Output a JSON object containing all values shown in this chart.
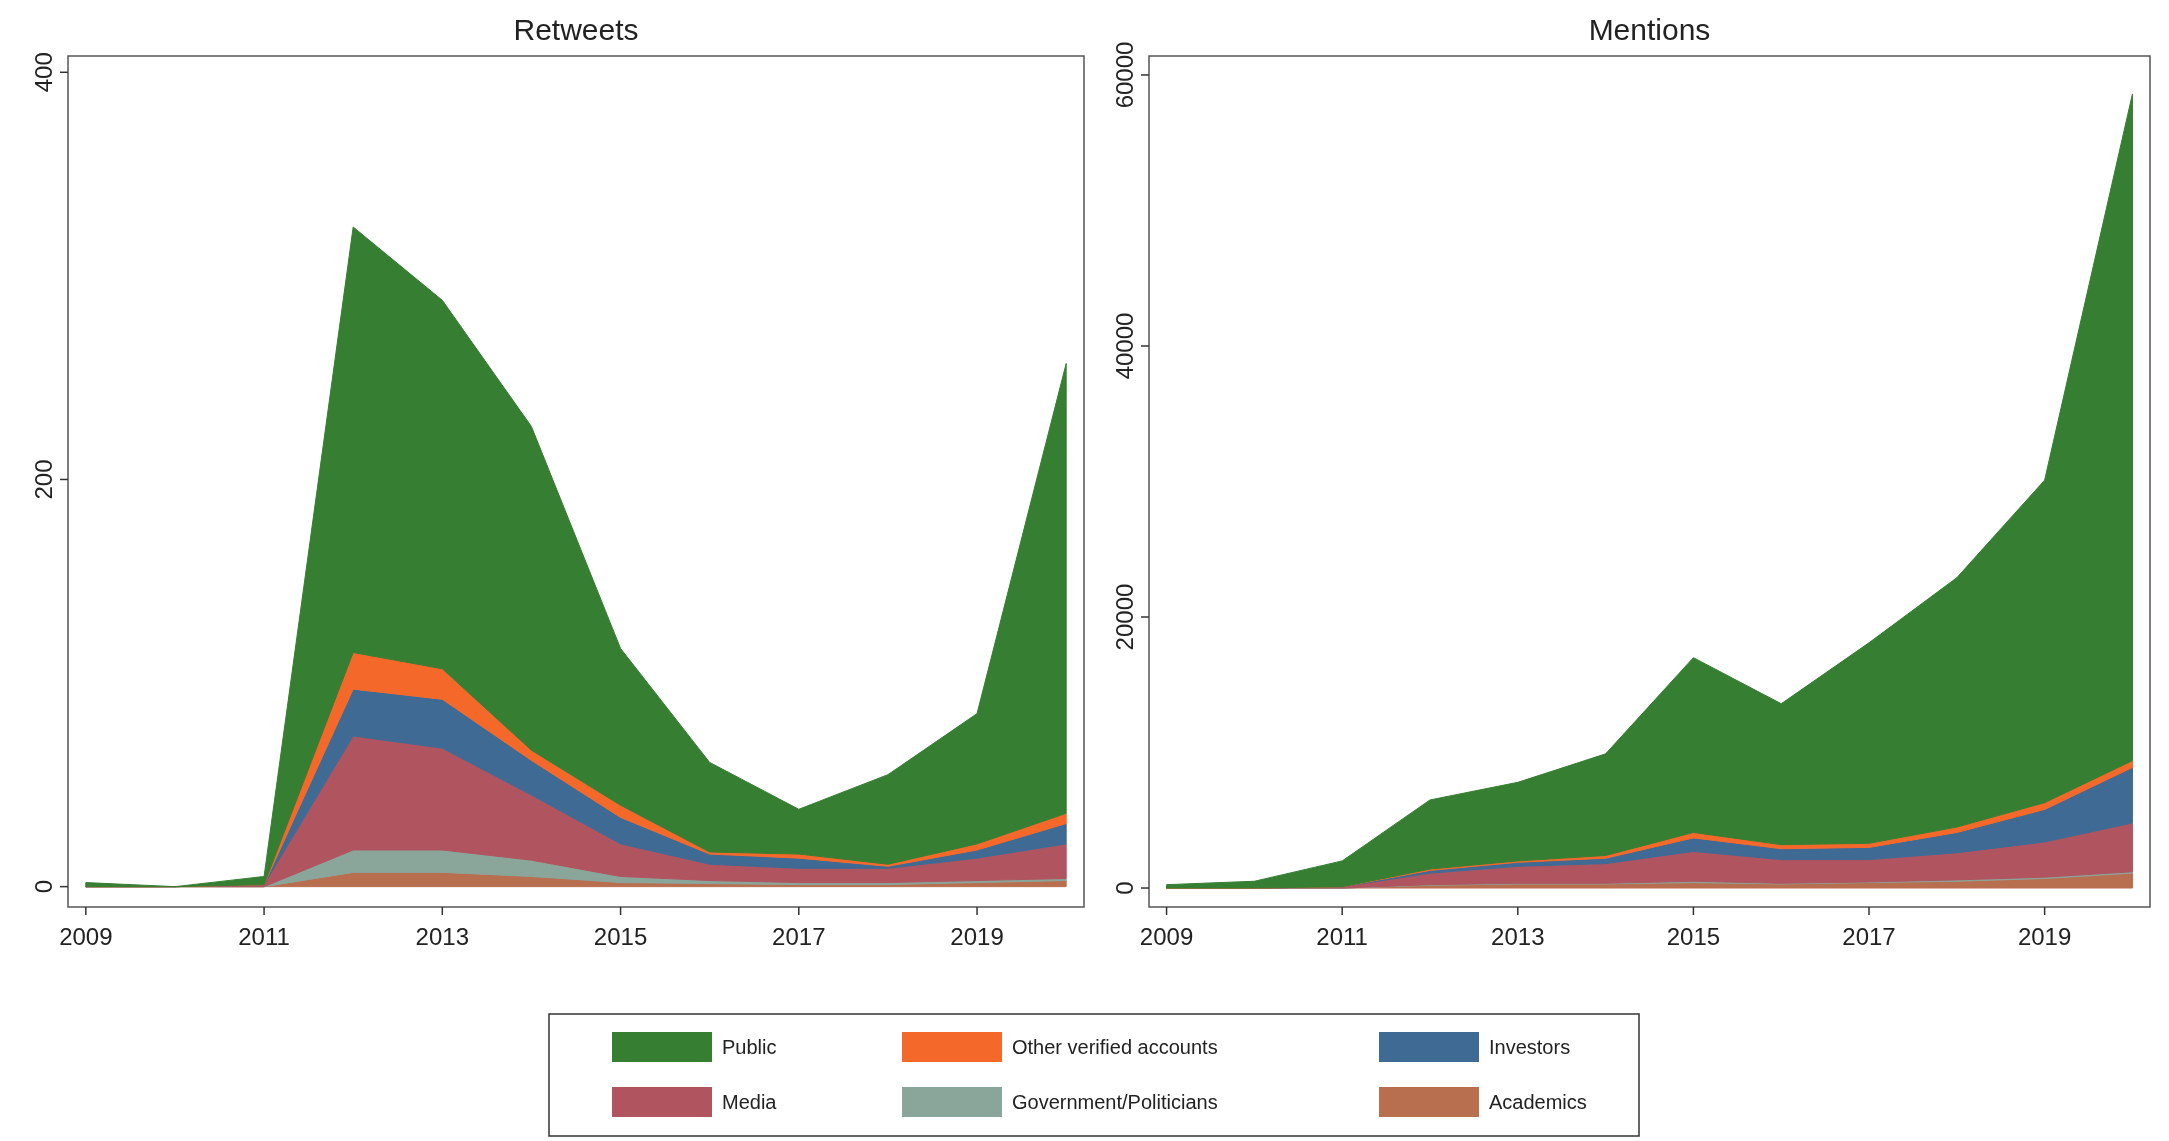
{
  "chart_data": [
    {
      "type": "area",
      "title": "Retweets",
      "stacked": true,
      "legend": "bottom",
      "x": [
        2009,
        2010,
        2011,
        2012,
        2013,
        2014,
        2015,
        2016,
        2017,
        2018,
        2019,
        2020
      ],
      "xlim": [
        2008.8,
        2020.2
      ],
      "xticks": [
        2009,
        2011,
        2013,
        2015,
        2017,
        2019
      ],
      "ylim": [
        -10,
        408
      ],
      "yticks": [
        0,
        200,
        400
      ],
      "series": [
        {
          "name": "Academics",
          "color": "#b86f4f",
          "values": [
            0,
            0,
            0,
            7,
            7,
            5,
            2,
            1.5,
            1,
            1,
            2,
            3
          ]
        },
        {
          "name": "Government/Politicians",
          "color": "#8aa59a",
          "values": [
            0,
            0,
            0,
            11,
            11,
            8,
            3,
            1.5,
            1,
            1,
            1,
            1
          ]
        },
        {
          "name": "Media",
          "color": "#b0545f",
          "values": [
            0,
            0,
            1,
            56,
            50,
            32,
            16,
            8,
            7,
            7,
            11,
            17
          ]
        },
        {
          "name": "Investors",
          "color": "#3e6a93",
          "values": [
            0,
            0,
            0,
            23,
            24,
            17,
            13,
            5,
            5,
            1,
            4,
            10
          ]
        },
        {
          "name": "Other verified accounts",
          "color": "#f4692a",
          "values": [
            0,
            0,
            0,
            18,
            15,
            5,
            6,
            1,
            2,
            1,
            3,
            5
          ]
        },
        {
          "name": "Public",
          "color": "#367e32",
          "values": [
            2,
            0,
            4,
            209,
            181,
            159,
            77,
            44,
            22,
            44,
            64,
            221
          ]
        }
      ]
    },
    {
      "type": "area",
      "title": "Mentions",
      "stacked": true,
      "x": [
        2009,
        2010,
        2011,
        2012,
        2013,
        2014,
        2015,
        2016,
        2017,
        2018,
        2019,
        2020
      ],
      "xlim": [
        2008.8,
        2020.2
      ],
      "xticks": [
        2009,
        2011,
        2013,
        2015,
        2017,
        2019
      ],
      "ylim": [
        -1400,
        61400
      ],
      "yticks": [
        0,
        20000,
        40000,
        60000
      ],
      "series": [
        {
          "color": "#b86f4f",
          "values": [
            0,
            0,
            0,
            200,
            300,
            300,
            400,
            300,
            400,
            500,
            700,
            1100
          ]
        },
        {
          "color": "#8aa59a",
          "values": [
            0,
            0,
            0,
            50,
            50,
            50,
            100,
            50,
            50,
            100,
            100,
            100
          ]
        },
        {
          "color": "#b0545f",
          "values": [
            0,
            0,
            100,
            850,
            1250,
            1450,
            2200,
            1750,
            1650,
            2000,
            2600,
            3600
          ]
        },
        {
          "color": "#3e6a93",
          "values": [
            0,
            0,
            0,
            200,
            300,
            400,
            1000,
            800,
            900,
            1500,
            2400,
            4100
          ]
        },
        {
          "color": "#f4692a",
          "values": [
            0,
            0,
            0,
            100,
            100,
            200,
            400,
            300,
            300,
            400,
            500,
            500
          ]
        },
        {
          "color": "#367e32",
          "values": [
            250,
            500,
            1900,
            5100,
            5800,
            7500,
            12900,
            10400,
            14800,
            18400,
            23800,
            49200
          ]
        }
      ]
    }
  ]
}
